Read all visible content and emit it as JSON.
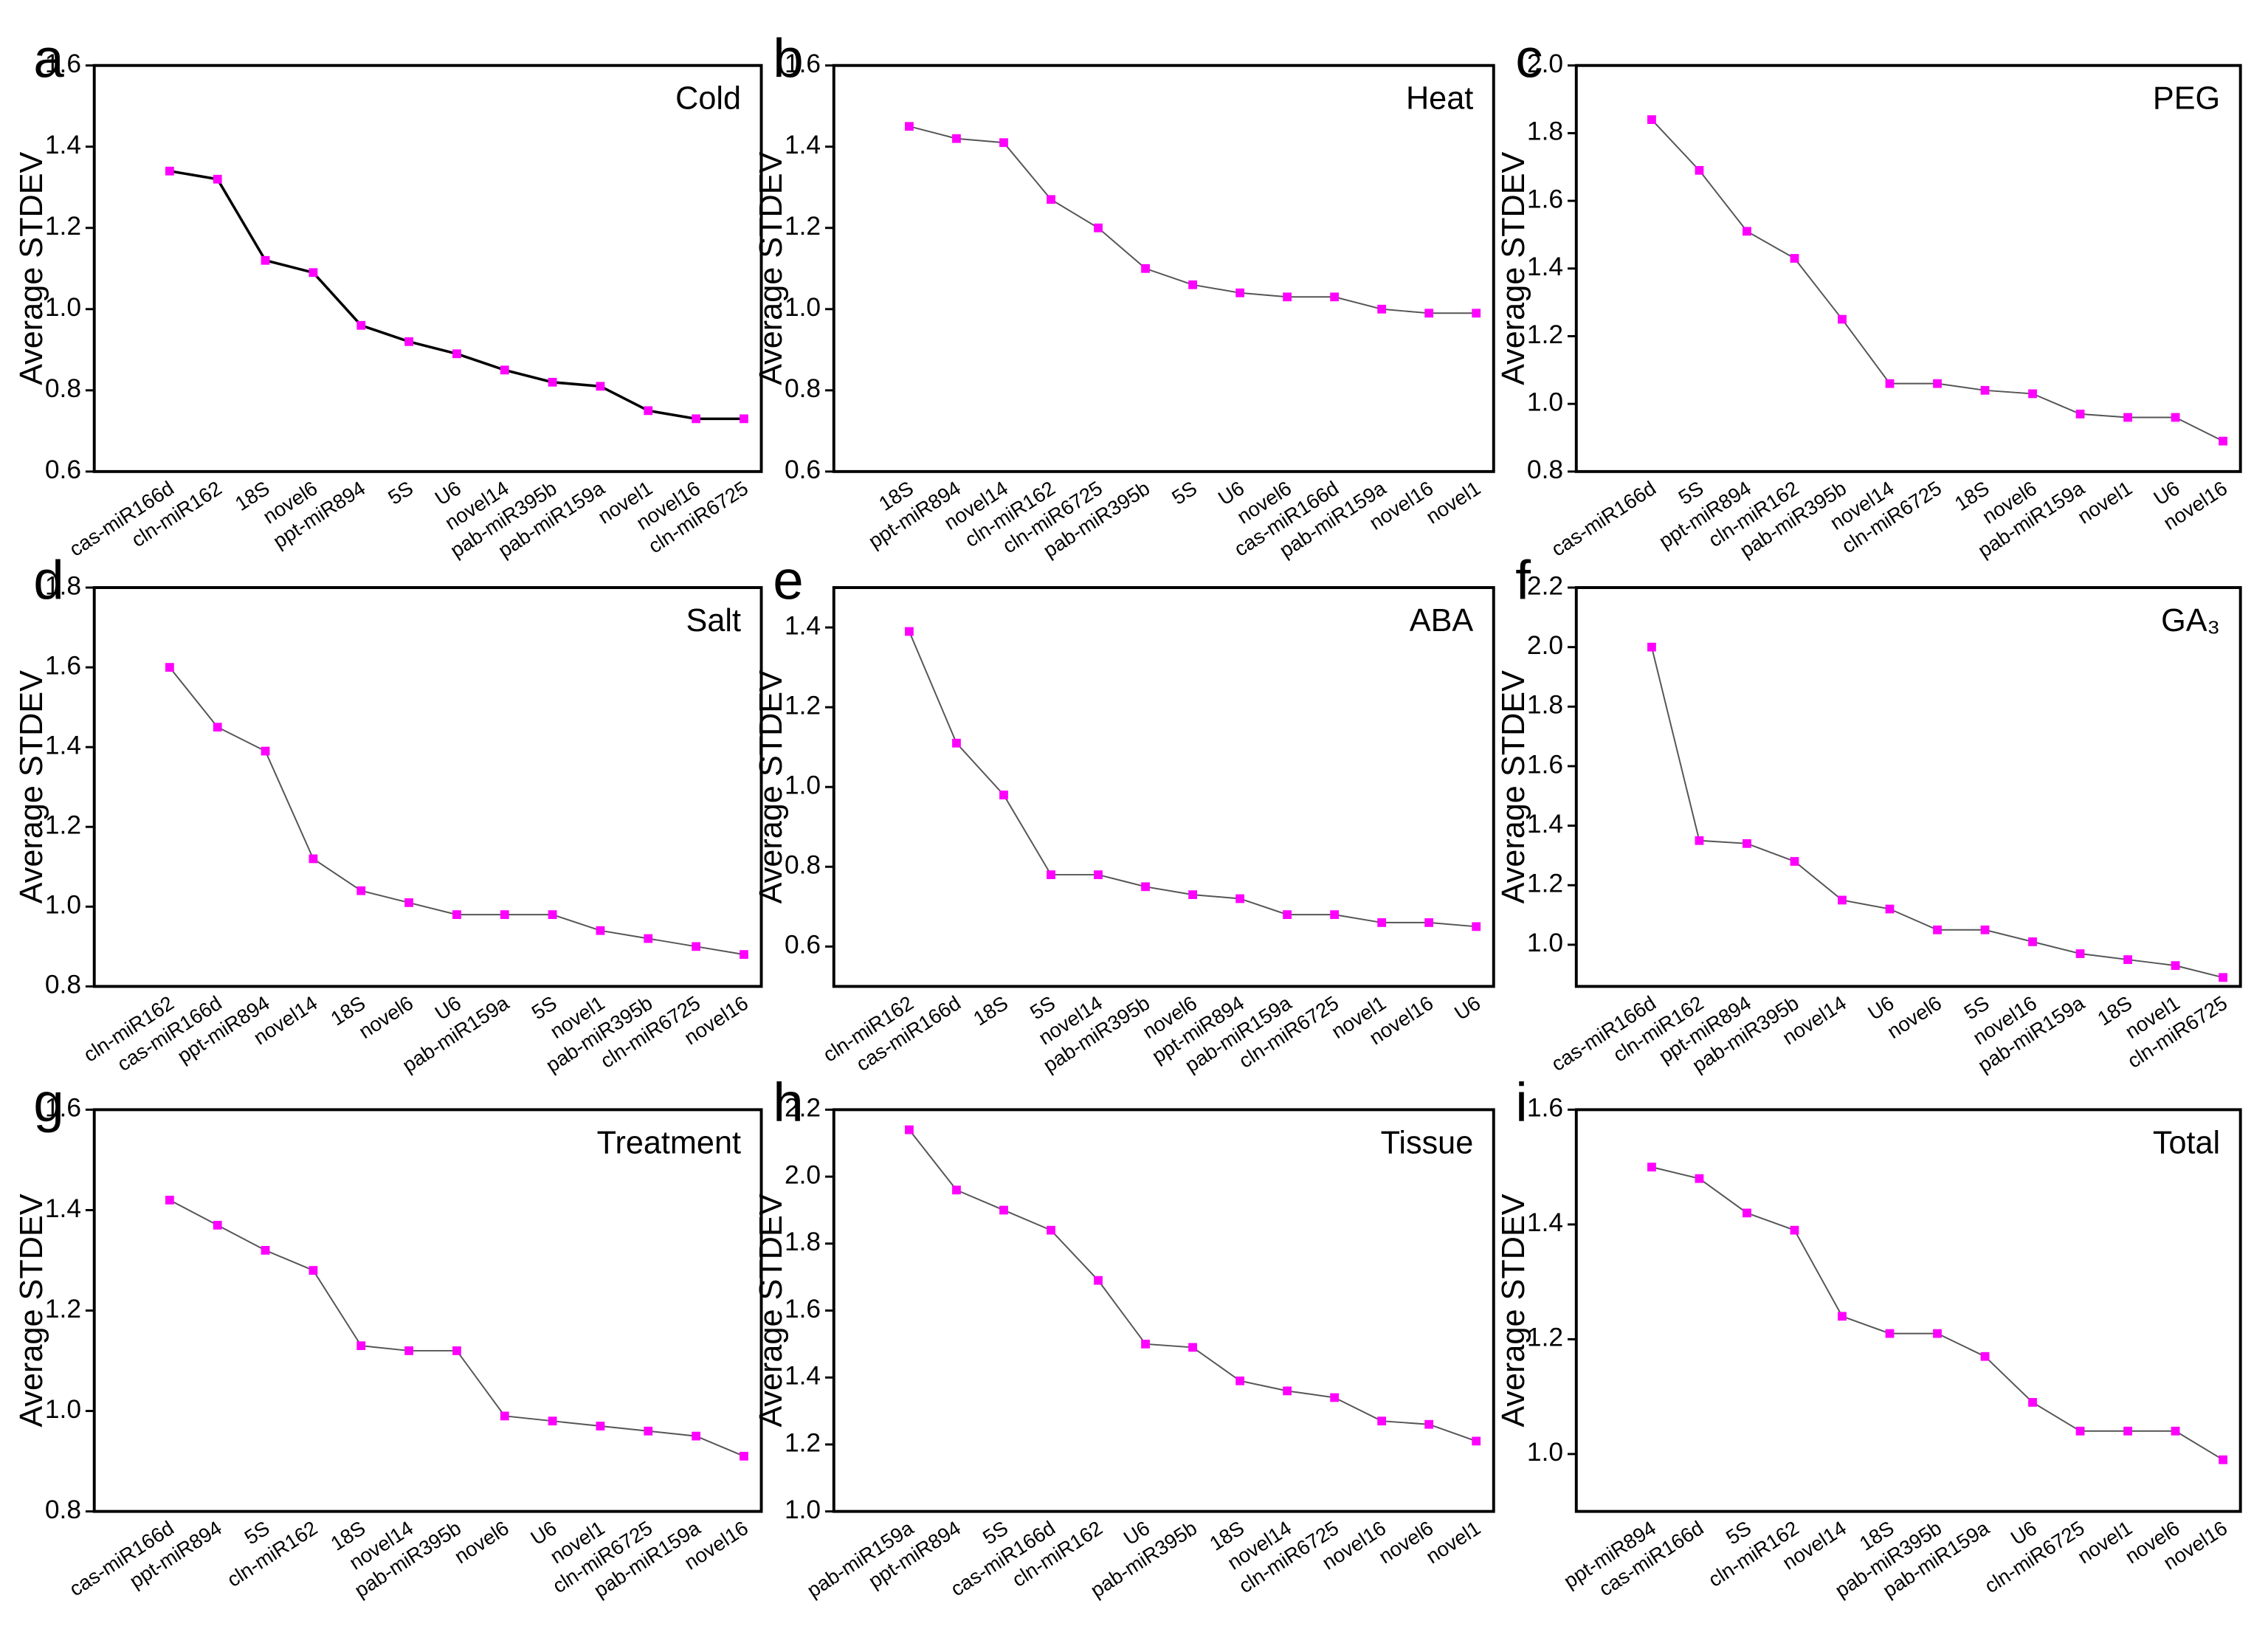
{
  "chart_data": [
    {
      "type": "line",
      "panel": "a",
      "title": "Cold",
      "y_label": "Average STDEV",
      "categories": [
        "cas-miR166d",
        "cln-miR162",
        "18S",
        "novel6",
        "ppt-miR894",
        "5S",
        "U6",
        "novel14",
        "pab-miR395b",
        "pab-miR159a",
        "novel1",
        "novel16",
        "cln-miR6725"
      ],
      "values": [
        1.34,
        1.32,
        1.12,
        1.09,
        0.96,
        0.92,
        0.89,
        0.85,
        0.82,
        0.81,
        0.75,
        0.73,
        0.73
      ],
      "ylim": [
        0.6,
        1.6
      ],
      "yticks": [
        0.6,
        0.8,
        {
          "value": 1,
          "label": "1.0"
        },
        1.2,
        1.4,
        1.6
      ],
      "line_color": "#000000",
      "marker_color": "#ff00ff"
    },
    {
      "type": "line",
      "panel": "b",
      "title": "Heat",
      "y_label": "Average STDEV",
      "categories": [
        "18S",
        "ppt-miR894",
        "novel14",
        "cln-miR162",
        "cln-miR6725",
        "pab-miR395b",
        "5S",
        "U6",
        "novel6",
        "cas-miR166d",
        "pab-miR159a",
        "novel16",
        "novel1"
      ],
      "values": [
        1.45,
        1.42,
        1.41,
        1.27,
        1.2,
        1.1,
        1.06,
        1.04,
        1.03,
        1.03,
        1.0,
        0.99,
        0.99
      ],
      "ylim": [
        0.6,
        1.6
      ],
      "yticks": [
        0.6,
        0.8,
        {
          "value": 1,
          "label": "1.0"
        },
        1.2,
        1.4,
        1.6
      ],
      "line_color": "#555555",
      "marker_color": "#ff00ff"
    },
    {
      "type": "line",
      "panel": "c",
      "title": "PEG",
      "y_label": "Average STDEV",
      "categories": [
        "cas-miR166d",
        "5S",
        "ppt-miR894",
        "cln-miR162",
        "pab-miR395b",
        "novel14",
        "cln-miR6725",
        "18S",
        "novel6",
        "pab-miR159a",
        "novel1",
        "U6",
        "novel16"
      ],
      "values": [
        1.84,
        1.69,
        1.51,
        1.43,
        1.25,
        1.06,
        1.06,
        1.04,
        1.03,
        0.97,
        0.96,
        0.96,
        0.89
      ],
      "ylim": [
        0.8,
        2.0
      ],
      "yticks": [
        0.8,
        {
          "value": 1,
          "label": "1.0"
        },
        1.2,
        1.4,
        1.6,
        1.8,
        {
          "value": 2,
          "label": "2.0"
        }
      ],
      "line_color": "#555555",
      "marker_color": "#ff00ff"
    },
    {
      "type": "line",
      "panel": "d",
      "title": "Salt",
      "y_label": "Average STDEV",
      "categories": [
        "cln-miR162",
        "cas-miR166d",
        "ppt-miR894",
        "novel14",
        "18S",
        "novel6",
        "U6",
        "pab-miR159a",
        "5S",
        "novel1",
        "pab-miR395b",
        "cln-miR6725",
        "novel16"
      ],
      "values": [
        1.6,
        1.45,
        1.39,
        1.12,
        1.04,
        1.01,
        0.98,
        0.98,
        0.98,
        0.94,
        0.92,
        0.9,
        0.88
      ],
      "ylim": [
        0.8,
        1.8
      ],
      "yticks": [
        0.8,
        {
          "value": 1,
          "label": "1.0"
        },
        1.2,
        1.4,
        1.6,
        1.8
      ],
      "line_color": "#555555",
      "marker_color": "#ff00ff"
    },
    {
      "type": "line",
      "panel": "e",
      "title": "ABA",
      "y_label": "Average STDEV",
      "categories": [
        "cln-miR162",
        "cas-miR166d",
        "18S",
        "5S",
        "novel14",
        "pab-miR395b",
        "novel6",
        "ppt-miR894",
        "pab-miR159a",
        "cln-miR6725",
        "novel1",
        "novel16",
        "U6"
      ],
      "values": [
        1.39,
        1.11,
        0.98,
        0.78,
        0.78,
        0.75,
        0.73,
        0.72,
        0.68,
        0.68,
        0.66,
        0.66,
        0.65
      ],
      "ylim": [
        0.5,
        1.5
      ],
      "yticks": [
        0.6,
        0.8,
        {
          "value": 1,
          "label": "1.0"
        },
        1.2,
        1.4
      ],
      "line_color": "#555555",
      "marker_color": "#ff00ff"
    },
    {
      "type": "line",
      "panel": "f",
      "title": "GA₃",
      "y_label": "Average STDEV",
      "categories": [
        "cas-miR166d",
        "cln-miR162",
        "ppt-miR894",
        "pab-miR395b",
        "novel14",
        "U6",
        "novel6",
        "5S",
        "novel16",
        "pab-miR159a",
        "18S",
        "novel1",
        "cln-miR6725"
      ],
      "values": [
        2.0,
        1.35,
        1.34,
        1.28,
        1.15,
        1.12,
        1.05,
        1.05,
        1.01,
        0.97,
        0.95,
        0.93,
        0.89
      ],
      "ylim": [
        0.86,
        2.2
      ],
      "yticks": [
        {
          "value": 1,
          "label": "1.0"
        },
        1.2,
        1.4,
        1.6,
        1.8,
        {
          "value": 2,
          "label": "2.0"
        },
        2.2
      ],
      "line_color": "#555555",
      "marker_color": "#ff00ff"
    },
    {
      "type": "line",
      "panel": "g",
      "title": "Treatment",
      "y_label": "Average STDEV",
      "categories": [
        "cas-miR166d",
        "ppt-miR894",
        "5S",
        "cln-miR162",
        "18S",
        "novel14",
        "pab-miR395b",
        "novel6",
        "U6",
        "novel1",
        "cln-miR6725",
        "pab-miR159a",
        "novel16"
      ],
      "values": [
        1.42,
        1.37,
        1.32,
        1.28,
        1.13,
        1.12,
        1.12,
        0.99,
        0.98,
        0.97,
        0.96,
        0.95,
        0.91
      ],
      "ylim": [
        0.8,
        1.6
      ],
      "yticks": [
        0.8,
        {
          "value": 1,
          "label": "1.0"
        },
        1.2,
        1.4,
        1.6
      ],
      "line_color": "#555555",
      "marker_color": "#ff00ff"
    },
    {
      "type": "line",
      "panel": "h",
      "title": "Tissue",
      "y_label": "Average STDEV",
      "categories": [
        "pab-miR159a",
        "ppt-miR894",
        "5S",
        "cas-miR166d",
        "cln-miR162",
        "U6",
        "pab-miR395b",
        "18S",
        "novel14",
        "cln-miR6725",
        "novel16",
        "novel6",
        "novel1"
      ],
      "values": [
        2.14,
        1.96,
        1.9,
        1.84,
        1.69,
        1.5,
        1.49,
        1.39,
        1.36,
        1.34,
        1.27,
        1.26,
        1.21
      ],
      "ylim": [
        1.0,
        2.2
      ],
      "yticks": [
        {
          "value": 1,
          "label": "1.0"
        },
        1.2,
        1.4,
        1.6,
        1.8,
        {
          "value": 2,
          "label": "2.0"
        },
        2.2
      ],
      "line_color": "#555555",
      "marker_color": "#ff00ff"
    },
    {
      "type": "line",
      "panel": "i",
      "title": "Total",
      "y_label": "Average STDEV",
      "categories": [
        "ppt-miR894",
        "cas-miR166d",
        "5S",
        "cln-miR162",
        "novel14",
        "18S",
        "pab-miR395b",
        "pab-miR159a",
        "U6",
        "cln-miR6725",
        "novel1",
        "novel6",
        "novel16"
      ],
      "values": [
        1.5,
        1.48,
        1.42,
        1.39,
        1.24,
        1.21,
        1.21,
        1.17,
        1.09,
        1.04,
        1.04,
        1.04,
        0.99
      ],
      "ylim": [
        0.9,
        1.6
      ],
      "yticks": [
        {
          "value": 1,
          "label": "1.0"
        },
        1.2,
        1.4,
        1.6
      ],
      "line_color": "#555555",
      "marker_color": "#ff00ff"
    }
  ]
}
